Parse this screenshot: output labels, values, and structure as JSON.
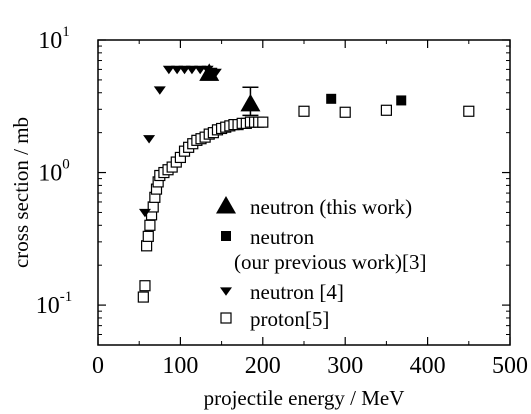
{
  "chart_data": {
    "type": "scatter",
    "title": "",
    "xlabel": "projectile energy / MeV",
    "ylabel": "cross section / mb",
    "xlim": [
      0,
      500
    ],
    "ylim": [
      0.05,
      10
    ],
    "yscale": "log",
    "grid": false,
    "legend_position": "bottom-right inside",
    "x_ticks": [
      {
        "value": 0,
        "label": "0"
      },
      {
        "value": 100,
        "label": "100"
      },
      {
        "value": 200,
        "label": "200"
      },
      {
        "value": 300,
        "label": "300"
      },
      {
        "value": 400,
        "label": "400"
      },
      {
        "value": 500,
        "label": "500"
      }
    ],
    "y_ticks": [
      {
        "value": 10,
        "base": "10",
        "exp": "1"
      },
      {
        "value": 1,
        "base": "10",
        "exp": "0"
      },
      {
        "value": 0.1,
        "base": "10",
        "exp": "-1"
      }
    ],
    "series": [
      {
        "name": "neutron (this work)",
        "marker": "triangle-up-filled",
        "points": [
          {
            "x": 135,
            "y": 5.6,
            "yerr_low": 5.0,
            "yerr_high": 6.1
          },
          {
            "x": 185,
            "y": 3.3,
            "yerr_low": 2.7,
            "yerr_high": 4.4
          }
        ]
      },
      {
        "name": "neutron",
        "name_line2": "(our previous work)[3]",
        "marker": "square-filled",
        "points": [
          {
            "x": 283,
            "y": 3.6
          },
          {
            "x": 368,
            "y": 3.5
          }
        ]
      },
      {
        "name": "neutron [4]",
        "marker": "triangle-down-filled",
        "points": [
          {
            "x": 57,
            "y": 0.5
          },
          {
            "x": 62,
            "y": 1.8
          },
          {
            "x": 75,
            "y": 4.2
          },
          {
            "x": 86,
            "y": 6.0
          },
          {
            "x": 96,
            "y": 6.0
          },
          {
            "x": 105,
            "y": 6.0
          },
          {
            "x": 114,
            "y": 6.0
          },
          {
            "x": 124,
            "y": 6.0
          },
          {
            "x": 133,
            "y": 6.0
          },
          {
            "x": 143,
            "y": 5.7
          }
        ]
      },
      {
        "name": "proton[5]",
        "marker": "square-open",
        "points": [
          {
            "x": 55,
            "y": 0.115
          },
          {
            "x": 57,
            "y": 0.14
          },
          {
            "x": 59,
            "y": 0.28
          },
          {
            "x": 61,
            "y": 0.33
          },
          {
            "x": 63,
            "y": 0.4
          },
          {
            "x": 65,
            "y": 0.48
          },
          {
            "x": 67,
            "y": 0.55
          },
          {
            "x": 69,
            "y": 0.65
          },
          {
            "x": 71,
            "y": 0.75
          },
          {
            "x": 73,
            "y": 0.85
          },
          {
            "x": 75,
            "y": 0.95
          },
          {
            "x": 80,
            "y": 1.0
          },
          {
            "x": 85,
            "y": 1.05
          },
          {
            "x": 90,
            "y": 1.1
          },
          {
            "x": 95,
            "y": 1.2
          },
          {
            "x": 100,
            "y": 1.3
          },
          {
            "x": 105,
            "y": 1.45
          },
          {
            "x": 110,
            "y": 1.55
          },
          {
            "x": 115,
            "y": 1.65
          },
          {
            "x": 120,
            "y": 1.75
          },
          {
            "x": 125,
            "y": 1.8
          },
          {
            "x": 130,
            "y": 1.85
          },
          {
            "x": 135,
            "y": 1.95
          },
          {
            "x": 140,
            "y": 2.0
          },
          {
            "x": 145,
            "y": 2.1
          },
          {
            "x": 150,
            "y": 2.15
          },
          {
            "x": 155,
            "y": 2.2
          },
          {
            "x": 160,
            "y": 2.25
          },
          {
            "x": 165,
            "y": 2.3
          },
          {
            "x": 170,
            "y": 2.3
          },
          {
            "x": 175,
            "y": 2.35
          },
          {
            "x": 180,
            "y": 2.35
          },
          {
            "x": 185,
            "y": 2.4
          },
          {
            "x": 190,
            "y": 2.4
          },
          {
            "x": 195,
            "y": 2.4
          },
          {
            "x": 200,
            "y": 2.4
          },
          {
            "x": 250,
            "y": 2.9
          },
          {
            "x": 300,
            "y": 2.85
          },
          {
            "x": 350,
            "y": 2.95
          },
          {
            "x": 450,
            "y": 2.9
          }
        ]
      }
    ]
  }
}
